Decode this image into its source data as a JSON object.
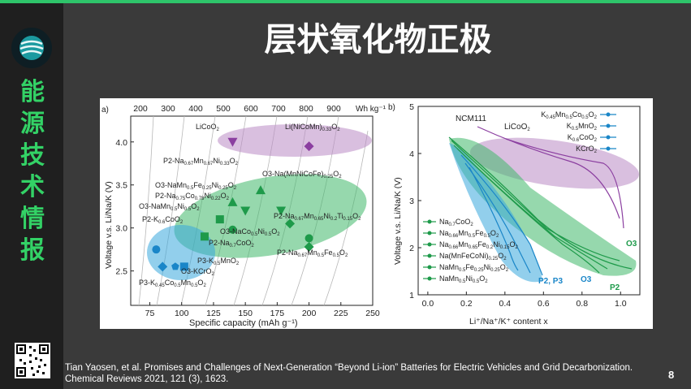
{
  "slide": {
    "title": "层状氧化物正极",
    "sidebar_text": [
      "能",
      "源",
      "技",
      "术",
      "情",
      "报"
    ],
    "reference_line1": "Tian Yaosen, et al. Promises and Challenges of Next-Generation “Beyond Li-ion” Batteries for Electric Vehicles and Grid Decarbonization.",
    "reference_line2": "Chemical Reviews 2021, 121 (3), 1623.",
    "page_number": "8"
  },
  "colors": {
    "accent_green": "#33d266",
    "purple": "#8b3fa0",
    "green": "#1e9a4a",
    "blue": "#1a86c8"
  },
  "chart_data": [
    {
      "type": "scatter",
      "panel_label": "a)",
      "xlabel": "Specific capacity (mAh g⁻¹)",
      "ylabel": "Voltage v.s. Li/Na/K (V)",
      "top_axis_label": "Wh kg⁻¹",
      "x_ticks": [
        75,
        100,
        125,
        150,
        175,
        200,
        225,
        250
      ],
      "y_ticks": [
        2.5,
        3.0,
        3.5,
        4.0
      ],
      "top_ticks": [
        200,
        300,
        400,
        500,
        600,
        700,
        800,
        900
      ],
      "xlim": [
        60,
        250
      ],
      "ylim": [
        2.1,
        4.3
      ],
      "points": [
        {
          "label": "LiCoO2",
          "x": 140,
          "y": 4.0,
          "color": "#8b3fa0",
          "marker": "tri-down"
        },
        {
          "label": "Li(NiCoMn)0.33O2",
          "x": 200,
          "y": 3.95,
          "color": "#8b3fa0",
          "marker": "diamond"
        },
        {
          "label": "P2-Na0.67Mn0.67Ni0.33O2",
          "x": 140,
          "y": 3.3,
          "color": "#1e9a4a",
          "marker": "tri-up"
        },
        {
          "label": "O3-Na(MnNiCoFe)0.25O2",
          "x": 162,
          "y": 3.44,
          "color": "#1e9a4a",
          "marker": "tri-up"
        },
        {
          "label": "O3-NaMn0.5Fe0.25Ni0.25O2",
          "x": 150,
          "y": 3.2,
          "color": "#1e9a4a",
          "marker": "tri-down"
        },
        {
          "label": "P2-Na0.75Co0.78Ni0.22O2",
          "x": 130,
          "y": 3.1,
          "color": "#1e9a4a",
          "marker": "square"
        },
        {
          "label": "O3-NaMn0.5Ni0.5O2",
          "x": 140,
          "y": 2.98,
          "color": "#1e9a4a",
          "marker": "circle"
        },
        {
          "label": "P2-Na0.67Mn0.67Ni0.33O2 (top)",
          "x": 178,
          "y": 3.2,
          "color": "#1e9a4a",
          "marker": "tri-down"
        },
        {
          "label": "P2-Na0.67Mn0.65Ni0.2Ti0.15O2",
          "x": 185,
          "y": 3.05,
          "color": "#1e9a4a",
          "marker": "diamond"
        },
        {
          "label": "P2-Na0.7CoO2",
          "x": 118,
          "y": 2.9,
          "color": "#1e9a4a",
          "marker": "square"
        },
        {
          "label": "O3-NaCo0.5Ni0.5O2",
          "x": 200,
          "y": 2.88,
          "color": "#1e9a4a",
          "marker": "circle"
        },
        {
          "label": "P2-Na0.67Mn0.5Fe0.5O2",
          "x": 200,
          "y": 2.78,
          "color": "#1e9a4a",
          "marker": "diamond"
        },
        {
          "label": "P2-K0.6CoO2",
          "x": 80,
          "y": 2.75,
          "color": "#1a86c8",
          "marker": "circle"
        },
        {
          "label": "P3-K0.5MnO2",
          "x": 102,
          "y": 2.55,
          "color": "#1a86c8",
          "marker": "square"
        },
        {
          "label": "O3-KCrO2",
          "x": 95,
          "y": 2.55,
          "color": "#1a86c8",
          "marker": "pentagon"
        },
        {
          "label": "P3-K0.45Co0.5Mn0.5O2",
          "x": 85,
          "y": 2.55,
          "color": "#1a86c8",
          "marker": "diamond"
        }
      ]
    },
    {
      "type": "line",
      "panel_label": "b)",
      "xlabel": "Li⁺/Na⁺/K⁺ content x",
      "ylabel": "Voltage v.s. Li/Na/K (V)",
      "x_ticks": [
        0.0,
        0.2,
        0.4,
        0.6,
        0.8,
        1.0
      ],
      "y_ticks": [
        1,
        2,
        3,
        4,
        5
      ],
      "xlim": [
        -0.05,
        1.1
      ],
      "ylim": [
        1,
        5
      ],
      "curve_labels": [
        "NCM111",
        "LiCoO2",
        "O3",
        "O3",
        "P2",
        "P2, P3"
      ],
      "legend_green": [
        "Na0.7CoO2",
        "Na0.66Mn0.5Fe0.5O2",
        "Na0.66Mn0.65Fe0.2Ni0.15O2",
        "Na(MnFeCoNi)0.25O2",
        "NaMn0.5Fe0.25Ni0.25O2",
        "NaMn0.5Ni0.5O2"
      ],
      "legend_blue": [
        "K0.45Mn0.5Co0.5O2",
        "K0.5MnO2",
        "K0.6CoO2",
        "KCrO2"
      ]
    }
  ]
}
